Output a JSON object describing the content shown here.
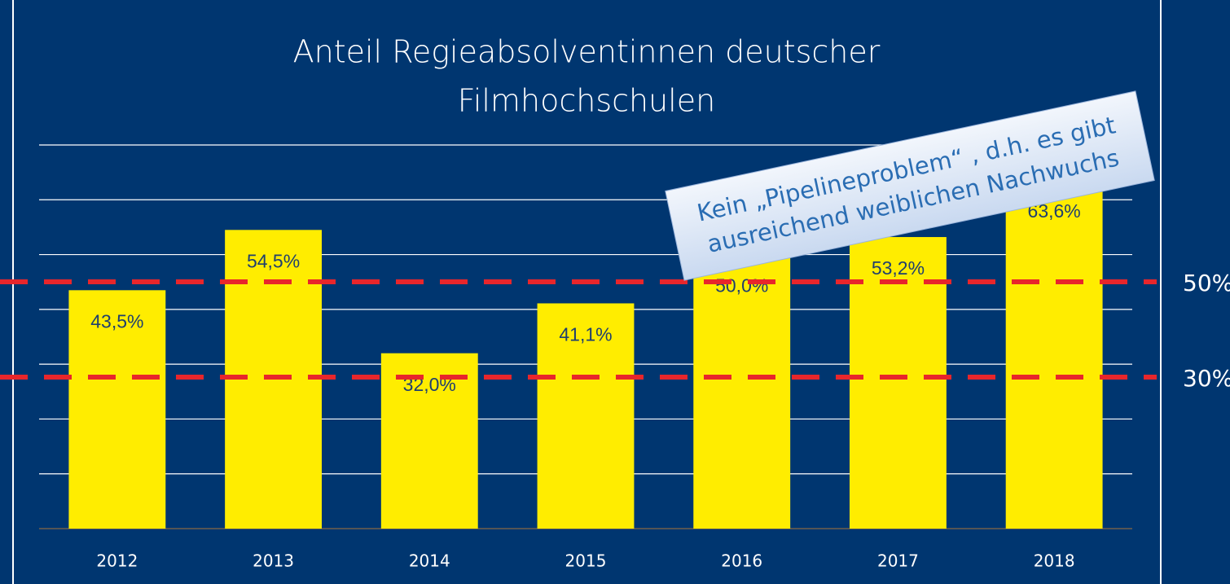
{
  "chart_data": {
    "type": "bar",
    "title": [
      "Anteil Regieabsolventinnen deutscher",
      "Filmhochschulen"
    ],
    "categories": [
      "2012",
      "2013",
      "2014",
      "2015",
      "2016",
      "2017",
      "2018"
    ],
    "values": [
      43.5,
      54.5,
      32.0,
      41.1,
      50.0,
      53.2,
      63.6
    ],
    "value_labels": [
      "43,5%",
      "54,5%",
      "32,0%",
      "41,1%",
      "50,0%",
      "53,2%",
      "63,6%"
    ],
    "color": "#ffed00",
    "ylim": [
      0,
      70
    ],
    "yticks": [
      0,
      10,
      20,
      30,
      40,
      50,
      60,
      70
    ],
    "grid": true,
    "reference_labels": [
      "50%",
      "30%"
    ],
    "annotation": [
      "Kein „Pipelineproblem“ , d.h. es gibt",
      "ausreichend weiblichen Nachwuchs"
    ]
  }
}
